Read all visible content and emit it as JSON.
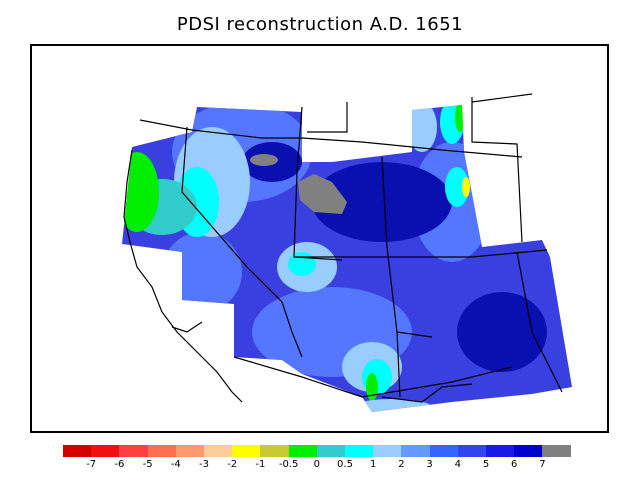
{
  "title": "PDSI reconstruction A.D. 1651",
  "legend": {
    "colors": [
      "#d40000",
      "#f01010",
      "#ff4040",
      "#ff7050",
      "#ff9a6e",
      "#ffcc99",
      "#ffff00",
      "#c8c832",
      "#00ee00",
      "#33cccc",
      "#00ffff",
      "#99ccff",
      "#6699ff",
      "#3366ff",
      "#3344ee",
      "#1a1ae6",
      "#0000cc",
      "#808080"
    ],
    "labels": [
      "-7",
      "-6",
      "-5",
      "-4",
      "-3",
      "-2",
      "-1",
      "-0.5",
      "0",
      "0.5",
      "1",
      "2",
      "3",
      "4",
      "5",
      "6",
      "7"
    ]
  },
  "colors": {
    "land_base": "#3a40e0",
    "deep_blue": "#0a10b0",
    "mid_blue": "#5577ff",
    "light_blue": "#99ccff",
    "cyan": "#00ffff",
    "teal": "#33cccc",
    "green": "#00ee00",
    "yellow": "#ffff00",
    "missing_gray": "#808080",
    "boundary": "#000000"
  }
}
